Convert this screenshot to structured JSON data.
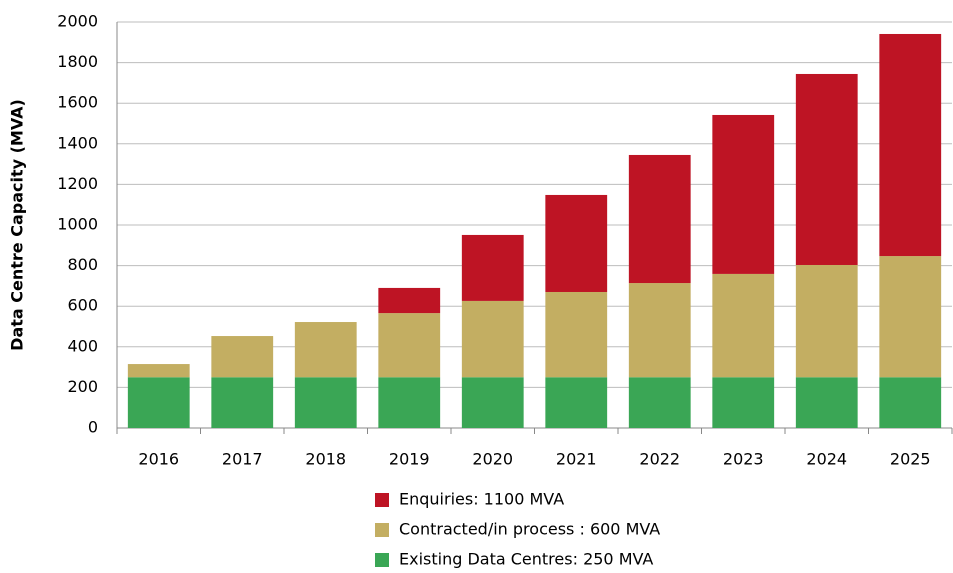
{
  "chart_data": {
    "type": "stacked_bar",
    "y_label": "Data Centre Capacity (MVA)",
    "categories": [
      "2016",
      "2017",
      "2018",
      "2019",
      "2020",
      "2021",
      "2022",
      "2023",
      "2024",
      "2025"
    ],
    "series": [
      {
        "name": "Existing Data Centres: 250 MVA",
        "color": "#3aa655",
        "values": [
          250,
          250,
          250,
          250,
          250,
          250,
          250,
          250,
          250,
          250
        ]
      },
      {
        "name": "Contracted/in process : 600 MVA",
        "color": "#c3ae62",
        "values": [
          65,
          203,
          272,
          316,
          376,
          420,
          464,
          509,
          553,
          597
        ]
      },
      {
        "name": "Enquiries: 1100 MVA",
        "color": "#be1424",
        "values": [
          0,
          0,
          0,
          124,
          325,
          478,
          631,
          783,
          941,
          1094
        ]
      }
    ],
    "ylim": [
      0,
      2000
    ],
    "yticks": [
      0,
      200,
      400,
      600,
      800,
      1000,
      1200,
      1400,
      1600,
      1800,
      2000
    ],
    "grid": true,
    "legend": "bottom"
  }
}
